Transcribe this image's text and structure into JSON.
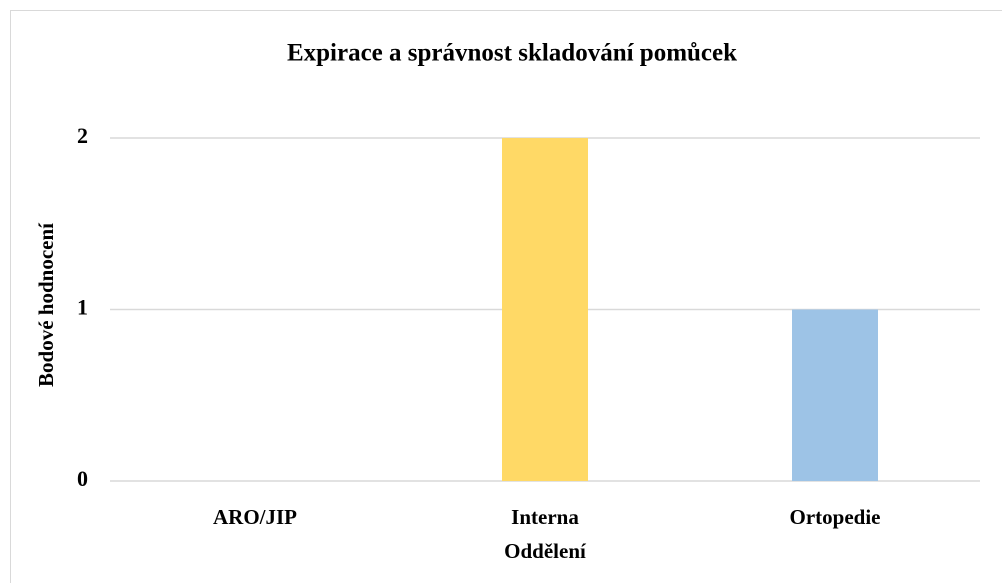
{
  "chart_data": {
    "type": "bar",
    "title": "Expirace a správnost skladování pomůcek",
    "x_label": "Oddělení",
    "y_label": "Bodové hodnocení",
    "categories": [
      "ARO/JIP",
      "Interna",
      "Ortopedie"
    ],
    "values": [
      0,
      2,
      1
    ],
    "colors": [
      null,
      "#ffd966",
      "#9dc3e6"
    ],
    "ylim": [
      0,
      2
    ],
    "yticks": [
      0,
      1,
      2
    ],
    "grid": true
  }
}
